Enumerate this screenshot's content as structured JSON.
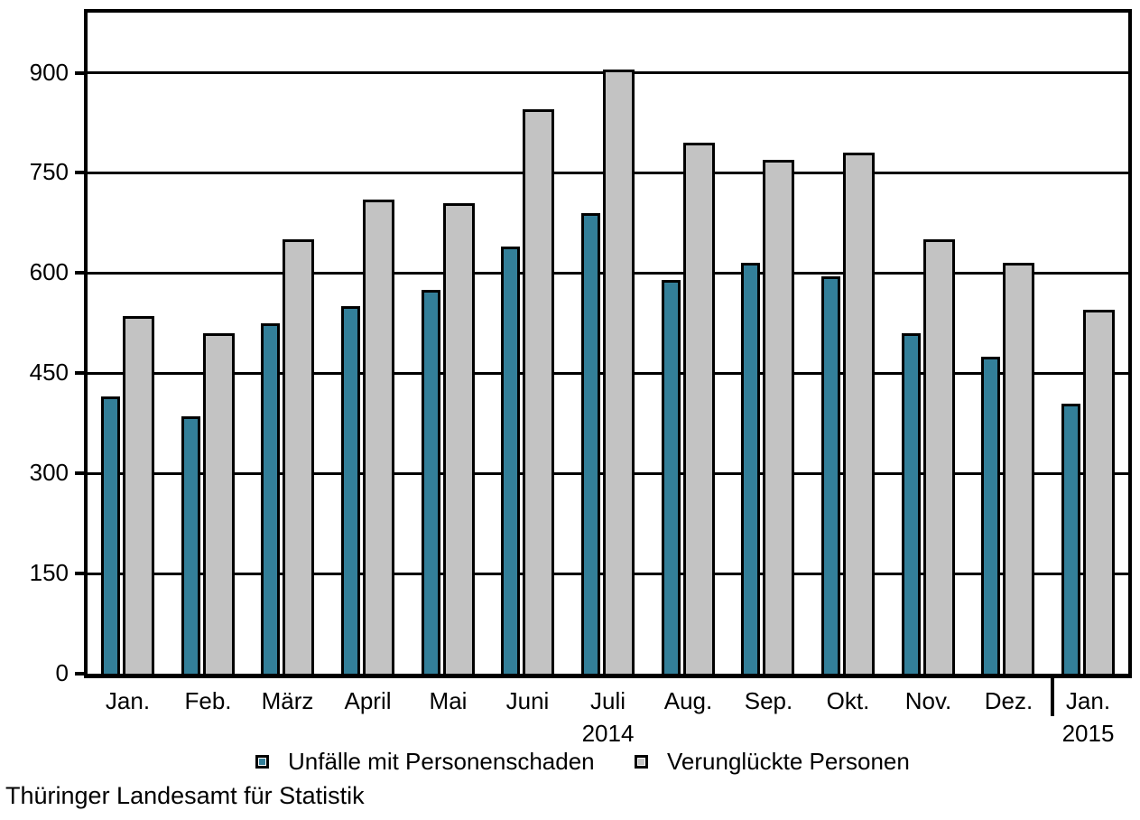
{
  "source_label": "Thüringer Landesamt für Statistik",
  "colors": {
    "accidents": "#337F99",
    "casualties": "#C3C3C3",
    "axis": "#000000",
    "background": "#FFFFFF"
  },
  "legend": {
    "items": [
      {
        "label": "Unfälle mit Personenschaden",
        "color_key": "accidents"
      },
      {
        "label": "Verunglückte Personen",
        "color_key": "casualties"
      }
    ]
  },
  "chart_data": {
    "type": "bar",
    "title": "",
    "xlabel": "",
    "ylabel": "",
    "categories": [
      "Jan.",
      "Feb.",
      "März",
      "April",
      "Mai",
      "Juni",
      "Juli",
      "Aug.",
      "Sep.",
      "Okt.",
      "Nov.",
      "Dez.",
      "Jan."
    ],
    "category_year_labels": [
      "",
      "",
      "",
      "",
      "",
      "",
      "2014",
      "",
      "",
      "",
      "",
      "",
      "2015"
    ],
    "series": [
      {
        "key": "accidents",
        "name": "Unfälle mit Personenschaden",
        "color_key": "accidents",
        "values": [
          415,
          385,
          525,
          550,
          575,
          640,
          690,
          590,
          615,
          595,
          510,
          475,
          405
        ]
      },
      {
        "key": "casualties",
        "name": "Verunglückte Personen",
        "color_key": "casualties",
        "values": [
          535,
          510,
          650,
          710,
          705,
          845,
          905,
          795,
          770,
          780,
          650,
          615,
          545
        ]
      }
    ],
    "yticks": [
      0,
      150,
      300,
      450,
      600,
      750,
      900
    ],
    "ylim": [
      0,
      990
    ],
    "grid": "horizontal",
    "legend_position": "bottom",
    "year_separator_after_category_index": 11
  }
}
